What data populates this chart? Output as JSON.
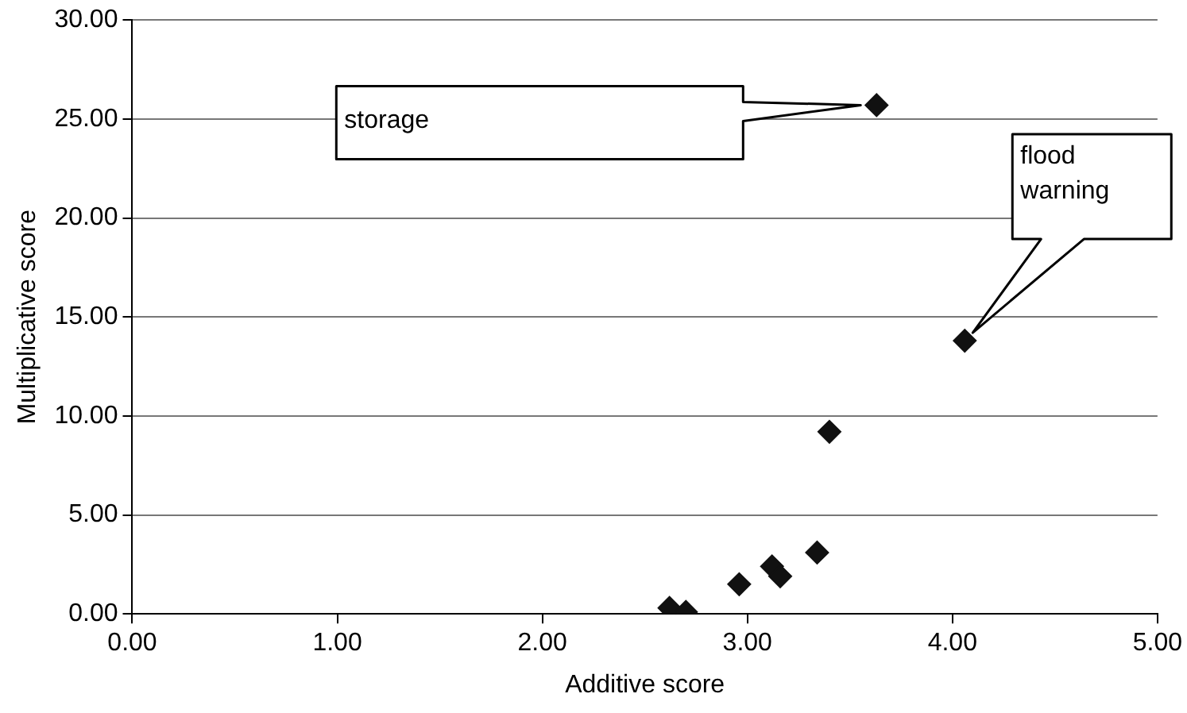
{
  "chart_data": {
    "type": "scatter",
    "xlabel": "Additive score",
    "ylabel": "Multiplicative score",
    "series": [
      {
        "color": "#111111",
        "x": [
          2.62,
          2.7,
          2.96,
          3.12,
          3.16,
          3.34,
          3.4,
          4.06,
          3.63
        ],
        "values": [
          0.3,
          0.1,
          1.5,
          2.4,
          1.9,
          3.1,
          9.2,
          13.8,
          25.7
        ]
      }
    ],
    "xlim": [
      0,
      5
    ],
    "xticks": [
      {
        "value": 0,
        "label": "0.00"
      },
      {
        "value": 1,
        "label": "1.00"
      },
      {
        "value": 2,
        "label": "2.00"
      },
      {
        "value": 3,
        "label": "3.00"
      },
      {
        "value": 4,
        "label": "4.00"
      },
      {
        "value": 5,
        "label": "5.00"
      }
    ],
    "ylim": [
      0,
      30
    ],
    "yticks": [
      {
        "value": 0,
        "label": "0.00"
      },
      {
        "value": 5,
        "label": "5.00"
      },
      {
        "value": 10,
        "label": "10.00"
      },
      {
        "value": 15,
        "label": "15.00"
      },
      {
        "value": 20,
        "label": "20.00"
      },
      {
        "value": 25,
        "label": "25.00"
      },
      {
        "value": 30,
        "label": "30.00"
      }
    ],
    "grid": "y",
    "marker": "diamond",
    "legend": false,
    "annotations": [
      "storage",
      "flood\nwarning"
    ]
  }
}
